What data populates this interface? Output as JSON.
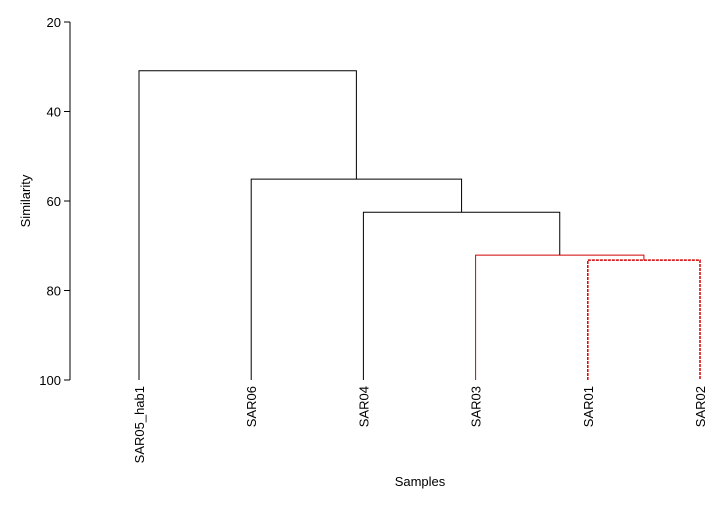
{
  "chart_data": {
    "type": "dendrogram",
    "ylabel": "Similarity",
    "xlabel": "Samples",
    "categories": [
      "SAR05_hab1",
      "SAR06",
      "SAR04",
      "SAR03",
      "SAR01",
      "SAR02"
    ],
    "ylim": [
      20,
      100
    ],
    "yticks": [
      20,
      40,
      60,
      80,
      100
    ],
    "y_inverted": true,
    "merges": [
      {
        "join": [
          4,
          5
        ],
        "height": 73.2,
        "color": "#d40000",
        "style": "dashed"
      },
      {
        "join": [
          3,
          6
        ],
        "height": 72.1,
        "color": "#d40000",
        "style": "solid"
      },
      {
        "join": [
          2,
          7
        ],
        "height": 62.5,
        "color": "#000000",
        "style": "solid"
      },
      {
        "join": [
          1,
          8
        ],
        "height": 55.1,
        "color": "#000000",
        "style": "solid"
      },
      {
        "join": [
          0,
          9
        ],
        "height": 30.9,
        "color": "#000000",
        "style": "solid"
      }
    ]
  }
}
